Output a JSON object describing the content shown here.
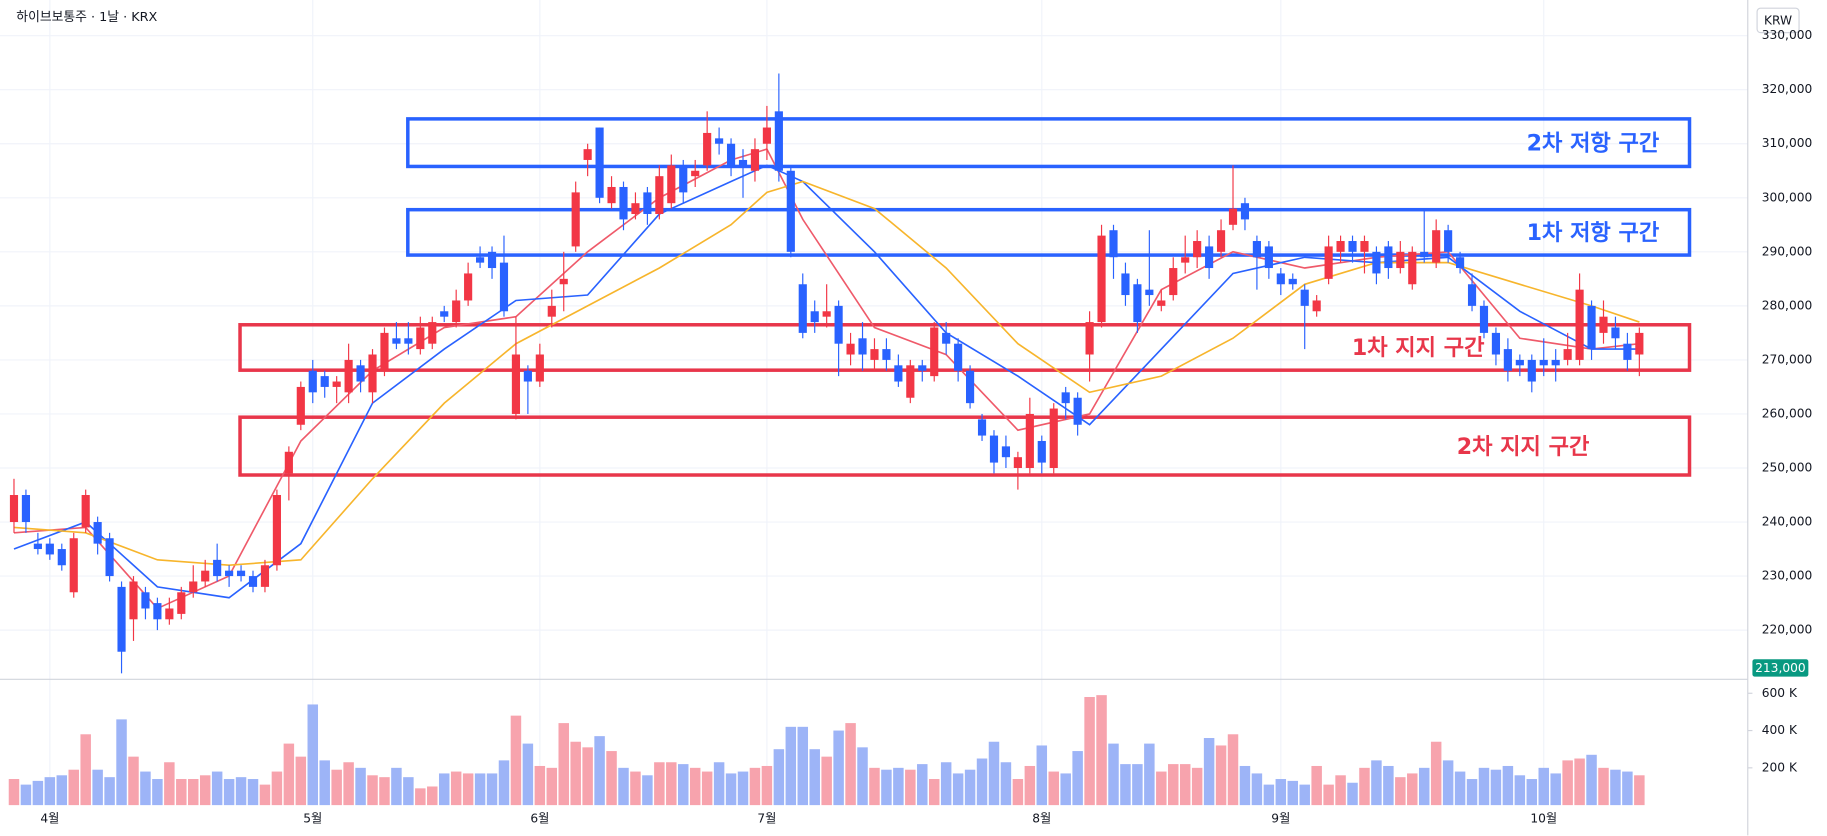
{
  "chart_data": {
    "type": "candlestick",
    "title": "하이브보통주 · 1날 · KRX",
    "currency_button": "KRW",
    "up_color": "#f23645",
    "down_color": "#2962ff",
    "volume_up_color": "#f7a3ad",
    "volume_down_color": "#9db4f7",
    "categories": [
      null,
      null,
      null,
      "4월",
      null,
      null,
      null,
      null,
      null,
      null,
      null,
      null,
      null,
      null,
      null,
      null,
      null,
      null,
      null,
      null,
      null,
      null,
      null,
      null,
      null,
      "5월",
      null,
      null,
      null,
      null,
      null,
      null,
      null,
      null,
      null,
      null,
      null,
      null,
      null,
      null,
      null,
      null,
      null,
      null,
      "6월",
      null,
      null,
      null,
      null,
      null,
      null,
      null,
      null,
      null,
      null,
      null,
      null,
      null,
      null,
      null,
      null,
      null,
      null,
      "7월",
      null,
      null,
      null,
      null,
      null,
      null,
      null,
      null,
      null,
      null,
      null,
      null,
      null,
      null,
      null,
      null,
      null,
      null,
      null,
      null,
      null,
      null,
      "8월",
      null,
      null,
      null,
      null,
      null,
      null,
      null,
      null,
      null,
      null,
      null,
      null,
      null,
      null,
      null,
      null,
      null,
      null,
      null,
      "9월",
      null,
      null,
      null,
      null,
      null,
      null,
      null,
      null,
      null,
      null,
      null,
      null,
      null,
      null,
      null,
      null,
      null,
      null,
      null,
      null,
      null,
      "10월",
      null,
      null,
      null,
      null,
      null,
      null,
      null,
      null
    ],
    "open": [
      240000,
      245000,
      236000,
      236000,
      235000,
      227000,
      239000,
      240000,
      237000,
      228000,
      222000,
      227000,
      225000,
      222000,
      223000,
      227000,
      229000,
      233000,
      231000,
      231000,
      230000,
      228000,
      232000,
      249000,
      258000,
      268000,
      267000,
      265000,
      264000,
      269000,
      264000,
      268000,
      274000,
      274000,
      272000,
      273000,
      279000,
      277000,
      281000,
      289000,
      290000,
      288000,
      260000,
      268000,
      266000,
      278000,
      284000,
      291000,
      307000,
      313000,
      299000,
      302000,
      297000,
      301000,
      297000,
      299000,
      306000,
      304000,
      306000,
      311000,
      310000,
      307000,
      305000,
      310000,
      316000,
      305000,
      284000,
      279000,
      278000,
      280000,
      271000,
      274000,
      270000,
      272000,
      269000,
      263000,
      269000,
      267000,
      275000,
      273000,
      268000,
      259000,
      256000,
      254000,
      250000,
      250000,
      255000,
      250000,
      264000,
      263000,
      271000,
      277000,
      294000,
      286000,
      284000,
      283000,
      280000,
      282000,
      288000,
      289000,
      291000,
      290000,
      295000,
      299000,
      292000,
      291000,
      286000,
      285000,
      283000,
      279000,
      285000,
      290000,
      292000,
      290000,
      290000,
      291000,
      287000,
      284000,
      290000,
      288000,
      294000,
      289000,
      284000,
      280000,
      275000,
      272000,
      270000,
      270000,
      270000,
      270000,
      270000,
      270000,
      280000,
      275000,
      276000,
      273000,
      271000
    ],
    "high": [
      248000,
      246000,
      238000,
      237000,
      236000,
      238000,
      246000,
      241000,
      238000,
      229000,
      230000,
      228000,
      226000,
      226000,
      228000,
      232000,
      233000,
      236000,
      232000,
      232000,
      231000,
      233000,
      246000,
      254000,
      266000,
      270000,
      268000,
      267000,
      273000,
      270000,
      272000,
      276000,
      277000,
      277000,
      278000,
      278000,
      280000,
      283000,
      288000,
      291000,
      291000,
      293000,
      278000,
      269000,
      273000,
      283000,
      290000,
      303000,
      310000,
      313000,
      304000,
      303000,
      301000,
      302000,
      306000,
      308000,
      307000,
      307000,
      316000,
      313000,
      311000,
      309000,
      311000,
      317000,
      323000,
      306000,
      286000,
      281000,
      284000,
      281000,
      275000,
      277000,
      274000,
      274000,
      271000,
      270000,
      270000,
      277000,
      277000,
      274000,
      269000,
      260000,
      257000,
      256000,
      253000,
      263000,
      256000,
      262000,
      265000,
      264000,
      279000,
      295000,
      295000,
      288000,
      285000,
      294000,
      283000,
      289000,
      293000,
      294000,
      293000,
      296000,
      306000,
      300000,
      293000,
      292000,
      287000,
      286000,
      284000,
      282000,
      293000,
      293000,
      293000,
      293000,
      291000,
      292000,
      292000,
      291000,
      298000,
      296000,
      295000,
      290000,
      286000,
      281000,
      276000,
      274000,
      271000,
      271000,
      274000,
      272000,
      275000,
      286000,
      281000,
      281000,
      278000,
      275000,
      276000
    ],
    "low": [
      238000,
      238000,
      234000,
      233000,
      231000,
      226000,
      238000,
      234000,
      229000,
      212000,
      218000,
      222000,
      220000,
      221000,
      222000,
      226000,
      228000,
      229000,
      228000,
      229000,
      227000,
      227000,
      231000,
      244000,
      257000,
      262000,
      263000,
      262000,
      262000,
      264000,
      262000,
      267000,
      272000,
      271000,
      271000,
      272000,
      277000,
      276000,
      280000,
      287000,
      285000,
      278000,
      259000,
      260000,
      265000,
      276000,
      279000,
      290000,
      304000,
      299000,
      298000,
      294000,
      296000,
      295000,
      296000,
      298000,
      299000,
      302000,
      305000,
      308000,
      304000,
      300000,
      303000,
      307000,
      303000,
      289000,
      274000,
      275000,
      276000,
      267000,
      269000,
      268000,
      268000,
      268000,
      265000,
      262000,
      266000,
      266000,
      271000,
      266000,
      261000,
      255000,
      249000,
      250000,
      246000,
      249000,
      249000,
      249000,
      259000,
      256000,
      266000,
      276000,
      285000,
      280000,
      275000,
      280000,
      279000,
      281000,
      286000,
      287000,
      285000,
      289000,
      294000,
      294000,
      283000,
      285000,
      282000,
      283000,
      272000,
      278000,
      284000,
      288000,
      288000,
      286000,
      284000,
      285000,
      286000,
      283000,
      288000,
      287000,
      288000,
      286000,
      279000,
      274000,
      269000,
      266000,
      267000,
      264000,
      267000,
      266000,
      269000,
      269000,
      270000,
      273000,
      272000,
      268000,
      267000
    ],
    "close": [
      245000,
      240000,
      235000,
      234000,
      232000,
      237000,
      245000,
      236000,
      230000,
      216000,
      229000,
      224000,
      222000,
      224000,
      227000,
      229000,
      231000,
      230000,
      230000,
      230000,
      228000,
      232000,
      245000,
      253000,
      265000,
      264000,
      265000,
      266000,
      270000,
      266000,
      271000,
      275000,
      273000,
      273000,
      276000,
      277000,
      278000,
      281000,
      286000,
      288000,
      287000,
      279000,
      271000,
      266000,
      271000,
      280000,
      285000,
      301000,
      309000,
      300000,
      302000,
      296000,
      299000,
      297000,
      304000,
      306000,
      301000,
      305000,
      312000,
      310000,
      306000,
      306000,
      309000,
      313000,
      305000,
      290000,
      275000,
      277000,
      279000,
      273000,
      273000,
      271000,
      272000,
      270000,
      266000,
      269000,
      268000,
      276000,
      273000,
      268000,
      262000,
      256000,
      251000,
      252000,
      252000,
      260000,
      251000,
      261000,
      262000,
      258000,
      277000,
      293000,
      289000,
      282000,
      277000,
      282000,
      281000,
      287000,
      289000,
      292000,
      287000,
      294000,
      298000,
      296000,
      289000,
      287000,
      284000,
      284000,
      280000,
      281000,
      291000,
      292000,
      290000,
      292000,
      286000,
      287000,
      290000,
      290000,
      289000,
      294000,
      290000,
      287000,
      280000,
      275000,
      271000,
      268000,
      269000,
      266000,
      269000,
      269000,
      272000,
      283000,
      272000,
      278000,
      274000,
      270000,
      275000
    ],
    "volume": [
      140000,
      110000,
      130000,
      150000,
      160000,
      190000,
      380000,
      190000,
      150000,
      460000,
      260000,
      180000,
      140000,
      230000,
      140000,
      140000,
      160000,
      180000,
      140000,
      150000,
      140000,
      110000,
      180000,
      330000,
      260000,
      540000,
      240000,
      190000,
      230000,
      200000,
      160000,
      150000,
      200000,
      150000,
      90000,
      100000,
      170000,
      180000,
      170000,
      170000,
      170000,
      240000,
      480000,
      330000,
      210000,
      200000,
      440000,
      340000,
      310000,
      370000,
      290000,
      200000,
      180000,
      160000,
      230000,
      230000,
      220000,
      200000,
      180000,
      230000,
      170000,
      180000,
      200000,
      210000,
      300000,
      420000,
      420000,
      300000,
      260000,
      400000,
      440000,
      310000,
      200000,
      190000,
      200000,
      190000,
      220000,
      140000,
      230000,
      170000,
      190000,
      250000,
      340000,
      230000,
      140000,
      210000,
      320000,
      180000,
      170000,
      290000,
      580000,
      590000,
      330000,
      220000,
      220000,
      330000,
      180000,
      220000,
      220000,
      200000,
      360000,
      320000,
      380000,
      210000,
      170000,
      110000,
      140000,
      130000,
      110000,
      210000,
      110000,
      160000,
      120000,
      200000,
      240000,
      210000,
      150000,
      170000,
      200000,
      340000,
      240000,
      180000,
      140000,
      200000,
      190000,
      210000,
      160000,
      140000,
      200000,
      170000,
      240000,
      250000,
      270000,
      200000,
      190000,
      180000,
      160000
    ],
    "moving_averages": [
      {
        "color": "#ef5a6a",
        "x": [
          0,
          6,
          12,
          18,
          24,
          30,
          36,
          42,
          48,
          54,
          60,
          63,
          66,
          72,
          78,
          84,
          90,
          96,
          102,
          108,
          114,
          120,
          126,
          132,
          136
        ],
        "values": [
          238000,
          239000,
          224000,
          230000,
          255000,
          268000,
          276000,
          278000,
          290000,
          300000,
          307000,
          309000,
          296000,
          276000,
          271000,
          257000,
          260000,
          283000,
          290000,
          287000,
          289000,
          290000,
          274000,
          272000,
          273000
        ]
      },
      {
        "color": "#2962ff",
        "x": [
          0,
          6,
          12,
          18,
          24,
          30,
          36,
          42,
          48,
          54,
          60,
          63,
          66,
          72,
          78,
          84,
          90,
          96,
          102,
          108,
          114,
          120,
          126,
          132,
          136
        ],
        "values": [
          235000,
          240000,
          228000,
          226000,
          236000,
          262000,
          272000,
          281000,
          282000,
          297000,
          303000,
          306000,
          303000,
          290000,
          275000,
          267000,
          258000,
          272000,
          286000,
          289000,
          288000,
          289000,
          279000,
          272000,
          272000
        ]
      },
      {
        "color": "#f7b52c",
        "x": [
          0,
          6,
          12,
          18,
          24,
          30,
          36,
          42,
          48,
          54,
          60,
          63,
          66,
          72,
          78,
          84,
          90,
          96,
          102,
          108,
          114,
          120,
          126,
          132,
          136
        ],
        "values": [
          239000,
          238000,
          233000,
          232000,
          233000,
          248000,
          262000,
          273000,
          280000,
          287000,
          295000,
          301000,
          303000,
          298000,
          287000,
          273000,
          264000,
          267000,
          274000,
          284000,
          288000,
          288000,
          284000,
          280000,
          277000
        ]
      }
    ],
    "zones": [
      {
        "label": "2차 저항 구간",
        "from": 305800,
        "to": 314600,
        "color": "#2962ff"
      },
      {
        "label": "1차 저항 구간",
        "from": 289400,
        "to": 297800,
        "color": "#2962ff"
      },
      {
        "label": "1차 지지 구간",
        "from": 268100,
        "to": 276500,
        "color": "#e8364a"
      },
      {
        "label": "2차 지지 구간",
        "from": 248700,
        "to": 259400,
        "color": "#e8364a"
      }
    ],
    "price_marker": {
      "value": 213000,
      "label": "213,000",
      "color": "#089981"
    },
    "ylim": [
      210900,
      336600
    ],
    "yticks": [
      {
        "value": 220000,
        "label": "220,000"
      },
      {
        "value": 230000,
        "label": "230,000"
      },
      {
        "value": 240000,
        "label": "240,000"
      },
      {
        "value": 250000,
        "label": "250,000"
      },
      {
        "value": 260000,
        "label": "260,000"
      },
      {
        "value": 270000,
        "label": "270,000"
      },
      {
        "value": 280000,
        "label": "280,000"
      },
      {
        "value": 290000,
        "label": "290,000"
      },
      {
        "value": 300000,
        "label": "300,000"
      },
      {
        "value": 310000,
        "label": "310,000"
      },
      {
        "value": 320000,
        "label": "320,000"
      },
      {
        "value": 330000,
        "label": "330,000"
      }
    ],
    "volume_ylim": [
      0,
      675000
    ],
    "volume_ticks": [
      {
        "value": 200000,
        "label": "200 K"
      },
      {
        "value": 400000,
        "label": "400 K"
      },
      {
        "value": 600000,
        "label": "600 K"
      }
    ],
    "grid": true
  }
}
